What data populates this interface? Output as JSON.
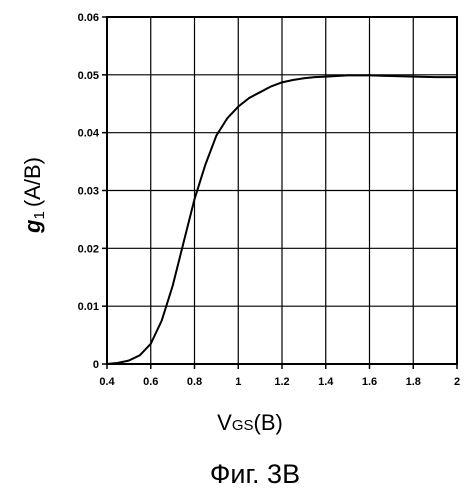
{
  "chart_data": {
    "type": "line",
    "title": "",
    "xlabel": {
      "main": "V",
      "sub": "GS",
      "unit": "(B)"
    },
    "ylabel": {
      "main": "g",
      "sub": "1",
      "unit": "(A/B)"
    },
    "xlim": [
      0.4,
      2
    ],
    "ylim": [
      0,
      0.06
    ],
    "x_ticks": [
      "0.4",
      "0.6",
      "0.8",
      "1",
      "1.2",
      "1.4",
      "1.6",
      "1.8",
      "2"
    ],
    "y_ticks": [
      "0",
      "0.01",
      "0.02",
      "0.03",
      "0.04",
      "0.05",
      "0.06"
    ],
    "grid": true,
    "series": [
      {
        "x": [
          0.4,
          0.45,
          0.5,
          0.55,
          0.6,
          0.65,
          0.7,
          0.75,
          0.8,
          0.85,
          0.9,
          0.95,
          1.0,
          1.05,
          1.1,
          1.15,
          1.2,
          1.25,
          1.3,
          1.35,
          1.4,
          1.45,
          1.5,
          1.6,
          1.7,
          1.8,
          1.9,
          2.0
        ],
        "y": [
          0.0,
          0.0002,
          0.0006,
          0.0015,
          0.0035,
          0.0075,
          0.0135,
          0.021,
          0.0285,
          0.0345,
          0.0395,
          0.0425,
          0.0445,
          0.046,
          0.047,
          0.048,
          0.0487,
          0.0491,
          0.0494,
          0.0496,
          0.0497,
          0.0498,
          0.0499,
          0.0499,
          0.0498,
          0.0497,
          0.0496,
          0.0496
        ]
      }
    ]
  },
  "caption": "Фиг. 3В"
}
